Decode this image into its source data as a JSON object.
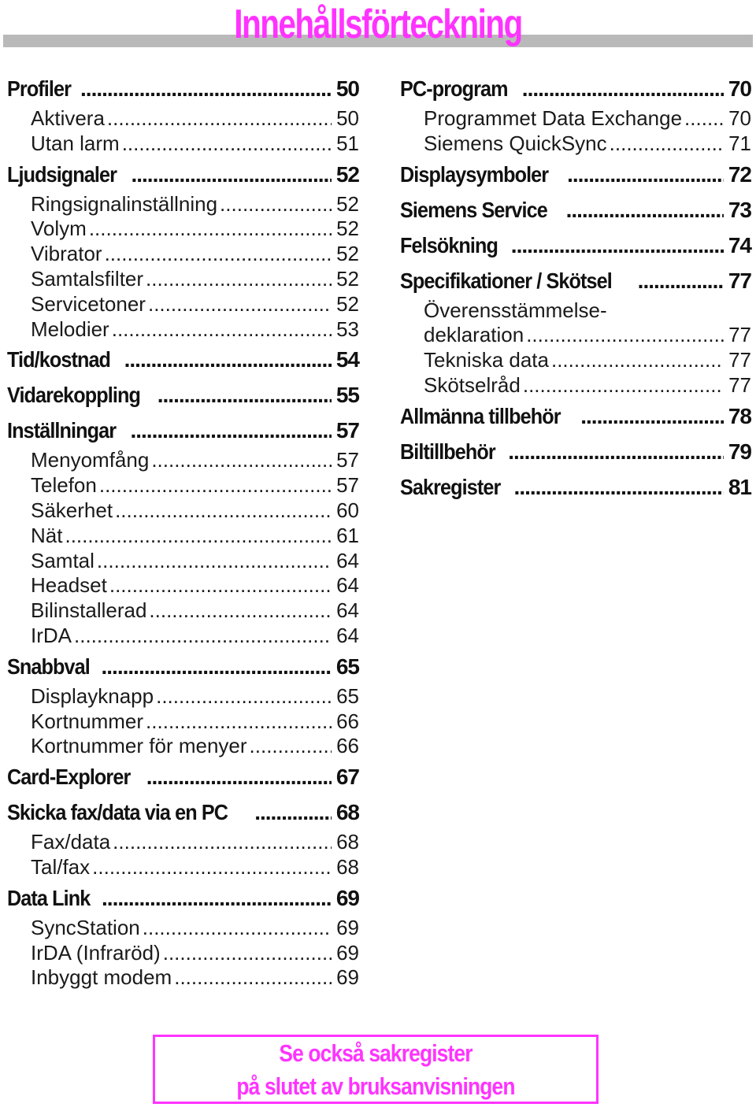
{
  "title": "Innehållsförteckning",
  "colors": {
    "accent": "#ff33ff",
    "bar": "#b9b9b9",
    "text": "#111111"
  },
  "left": [
    {
      "label": "Profiler",
      "page": "50",
      "level": "main"
    },
    {
      "label": "Aktivera",
      "page": "50",
      "level": "sub"
    },
    {
      "label": "Utan larm",
      "page": "51",
      "level": "sub"
    },
    {
      "label": "Ljudsignaler",
      "page": "52",
      "level": "main"
    },
    {
      "label": "Ringsignalinställning",
      "page": "52",
      "level": "sub"
    },
    {
      "label": "Volym",
      "page": "52",
      "level": "sub"
    },
    {
      "label": "Vibrator",
      "page": "52",
      "level": "sub"
    },
    {
      "label": "Samtalsfilter",
      "page": "52",
      "level": "sub"
    },
    {
      "label": "Servicetoner",
      "page": "52",
      "level": "sub"
    },
    {
      "label": "Melodier",
      "page": "53",
      "level": "sub"
    },
    {
      "label": "Tid/kostnad",
      "page": "54",
      "level": "main"
    },
    {
      "label": "Vidarekoppling",
      "page": "55",
      "level": "main"
    },
    {
      "label": "Inställningar",
      "page": "57",
      "level": "main"
    },
    {
      "label": "Menyomfång",
      "page": "57",
      "level": "sub"
    },
    {
      "label": "Telefon",
      "page": "57",
      "level": "sub"
    },
    {
      "label": "Säkerhet",
      "page": "60",
      "level": "sub"
    },
    {
      "label": "Nät",
      "page": "61",
      "level": "sub"
    },
    {
      "label": "Samtal",
      "page": "64",
      "level": "sub"
    },
    {
      "label": "Headset",
      "page": "64",
      "level": "sub"
    },
    {
      "label": "Bilinstallerad",
      "page": "64",
      "level": "sub"
    },
    {
      "label": "IrDA",
      "page": "64",
      "level": "sub"
    },
    {
      "label": "Snabbval",
      "page": "65",
      "level": "main"
    },
    {
      "label": "Displayknapp",
      "page": "65",
      "level": "sub"
    },
    {
      "label": "Kortnummer",
      "page": "66",
      "level": "sub"
    },
    {
      "label": "Kortnummer för menyer",
      "page": "66",
      "level": "sub"
    },
    {
      "label": "Card-Explorer",
      "page": "67",
      "level": "main"
    },
    {
      "label": "Skicka fax/data via en PC",
      "page": "68",
      "level": "main"
    },
    {
      "label": "Fax/data",
      "page": "68",
      "level": "sub"
    },
    {
      "label": "Tal/fax",
      "page": "68",
      "level": "sub"
    },
    {
      "label": "Data Link",
      "page": "69",
      "level": "main"
    },
    {
      "label": "SyncStation",
      "page": "69",
      "level": "sub"
    },
    {
      "label": "IrDA (Infraröd)",
      "page": "69",
      "level": "sub"
    },
    {
      "label": "Inbyggt modem",
      "page": "69",
      "level": "sub"
    }
  ],
  "right": [
    {
      "label": "PC-program",
      "page": "70",
      "level": "main"
    },
    {
      "label": "Programmet Data Exchange",
      "page": "70",
      "level": "sub"
    },
    {
      "label": "Siemens QuickSync",
      "page": "71",
      "level": "sub"
    },
    {
      "label": "Displaysymboler",
      "page": "72",
      "level": "main"
    },
    {
      "label": "Siemens Service",
      "page": "73",
      "level": "main"
    },
    {
      "label": "Felsökning",
      "page": "74",
      "level": "main"
    },
    {
      "label": "Specifikationer / Skötsel",
      "page": "77",
      "level": "main"
    },
    {
      "label": "Överensstämmelse-",
      "page": "",
      "level": "sub-cont"
    },
    {
      "label": "deklaration",
      "page": "77",
      "level": "sub"
    },
    {
      "label": "Tekniska data",
      "page": "77",
      "level": "sub"
    },
    {
      "label": "Skötselråd",
      "page": "77",
      "level": "sub"
    },
    {
      "label": "Allmänna tillbehör",
      "page": "78",
      "level": "main"
    },
    {
      "label": "Biltillbehör",
      "page": "79",
      "level": "main"
    },
    {
      "label": "Sakregister",
      "page": "81",
      "level": "main"
    }
  ],
  "note": {
    "line1": "Se också sakregister",
    "line2": "på slutet av bruksanvisningen"
  }
}
